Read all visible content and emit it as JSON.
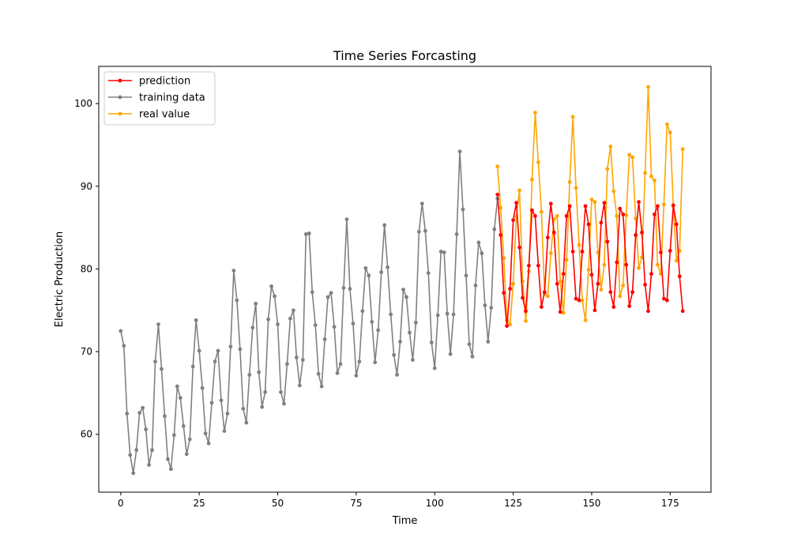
{
  "chart_data": {
    "type": "line",
    "title": "Time Series Forcasting",
    "xlabel": "Time",
    "ylabel": "Electric Production",
    "xlim": [
      -7,
      188
    ],
    "ylim": [
      53,
      104.5
    ],
    "xticks": [
      0,
      25,
      50,
      75,
      100,
      125,
      150,
      175
    ],
    "yticks": [
      60,
      70,
      80,
      90,
      100
    ],
    "grid": false,
    "legend_position": "top-left",
    "legend_order": [
      "prediction",
      "training data",
      "real value"
    ],
    "series": [
      {
        "name": "training data",
        "color": "#808080",
        "x_start": 0,
        "values": [
          72.5,
          70.7,
          62.5,
          57.5,
          55.3,
          58.1,
          62.6,
          63.2,
          60.6,
          56.3,
          58.1,
          68.8,
          73.3,
          67.9,
          62.2,
          57.0,
          55.8,
          59.9,
          65.8,
          64.4,
          61.0,
          57.6,
          59.4,
          68.2,
          73.8,
          70.1,
          65.6,
          60.1,
          58.9,
          63.8,
          68.8,
          70.1,
          64.1,
          60.4,
          62.5,
          70.6,
          79.8,
          76.2,
          70.3,
          63.1,
          61.4,
          67.2,
          72.9,
          75.8,
          67.5,
          63.3,
          65.1,
          73.9,
          77.9,
          76.7,
          73.3,
          65.1,
          63.7,
          68.5,
          74.0,
          75.0,
          69.3,
          65.9,
          69.0,
          84.2,
          84.3,
          77.2,
          73.2,
          67.3,
          65.8,
          71.5,
          76.6,
          77.1,
          73.0,
          67.4,
          68.5,
          77.7,
          86.0,
          77.6,
          73.4,
          67.1,
          68.8,
          74.9,
          80.1,
          79.2,
          73.6,
          68.7,
          72.6,
          79.6,
          85.3,
          80.2,
          74.5,
          69.6,
          67.2,
          71.2,
          77.5,
          76.6,
          72.3,
          69.0,
          73.5,
          84.5,
          87.9,
          84.6,
          79.5,
          71.1,
          68.0,
          74.4,
          82.1,
          82.0,
          74.6,
          69.7,
          74.5,
          84.2,
          94.2,
          87.2,
          79.2,
          70.9,
          69.4,
          78.0,
          83.2,
          81.9,
          75.6,
          71.2,
          75.3,
          84.8,
          88.5
        ]
      },
      {
        "name": "prediction",
        "color": "#ff0000",
        "x_start": 120,
        "values": [
          89.0,
          84.1,
          77.1,
          73.1,
          77.6,
          85.9,
          88.0,
          82.6,
          76.5,
          74.9,
          80.4,
          87.1,
          86.4,
          80.4,
          75.4,
          77.2,
          83.8,
          87.9,
          84.4,
          78.2,
          74.8,
          79.4,
          86.4,
          87.6,
          82.1,
          76.4,
          76.2,
          82.1,
          87.6,
          85.4,
          79.3,
          75.0,
          78.2,
          85.6,
          88.0,
          83.3,
          77.2,
          75.4,
          80.8,
          87.3,
          86.6,
          80.5,
          75.5,
          77.2,
          84.1,
          88.1,
          84.4,
          78.1,
          74.9,
          79.4,
          86.6,
          87.6,
          82.0,
          76.4,
          76.2,
          82.2,
          87.7,
          85.4,
          79.1,
          74.9
        ]
      },
      {
        "name": "real value",
        "color": "#ffa500",
        "x_start": 120,
        "values": [
          92.4,
          87.4,
          81.3,
          73.8,
          73.3,
          78.2,
          86.3,
          89.5,
          78.5,
          73.7,
          79.7,
          90.8,
          98.9,
          92.9,
          86.9,
          77.0,
          76.7,
          81.9,
          86.0,
          86.4,
          78.5,
          74.7,
          81.1,
          90.5,
          98.4,
          89.8,
          82.9,
          76.2,
          73.8,
          79.9,
          88.4,
          88.1,
          82.0,
          77.5,
          80.5,
          92.1,
          94.8,
          89.4,
          86.4,
          76.7,
          78.0,
          86.5,
          93.8,
          93.5,
          86.1,
          80.1,
          81.4,
          91.6,
          102.0,
          91.2,
          90.7,
          80.5,
          79.4,
          87.8,
          97.5,
          96.5,
          87.6,
          81.0,
          82.2,
          94.5
        ]
      }
    ]
  }
}
